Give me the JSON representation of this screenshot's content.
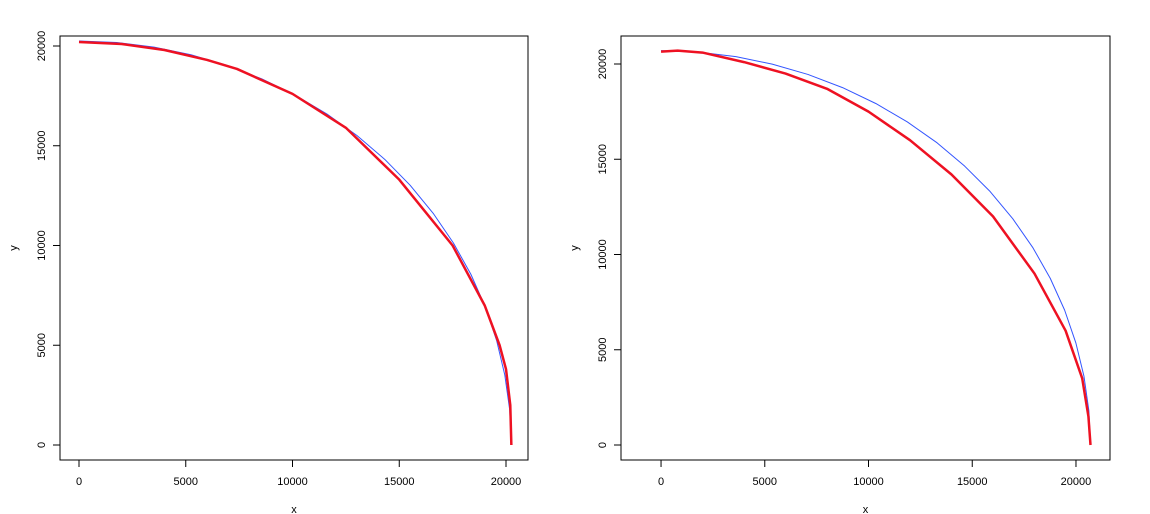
{
  "chart_data": [
    {
      "type": "line",
      "xlabel": "x",
      "ylabel": "y",
      "xlim": [
        -890,
        21030
      ],
      "ylim": [
        -752,
        20501
      ],
      "xticks": [
        0,
        5000,
        10000,
        15000,
        20000
      ],
      "yticks": [
        0,
        5000,
        10000,
        15000,
        20000
      ],
      "series": [
        {
          "color": "#3355ff",
          "width": 1,
          "x": [
            0,
            1765,
            3516,
            5241,
            6926,
            8558,
            10125,
            11615,
            13017,
            14319,
            15512,
            16588,
            17537,
            18353,
            19029,
            19560,
            19942,
            20173,
            20250
          ],
          "values": [
            20250,
            20173,
            19942,
            19560,
            19029,
            18353,
            17537,
            16588,
            15512,
            14319,
            13017,
            11615,
            10125,
            8558,
            6926,
            5241,
            3516,
            1765,
            0
          ]
        },
        {
          "color": "#ee1122",
          "width": 2.5,
          "x": [
            0,
            2000,
            4000,
            6000,
            7400,
            10000,
            12500,
            15000,
            17500,
            19000,
            19700,
            20000,
            20200,
            20250
          ],
          "values": [
            20200,
            20100,
            19800,
            19300,
            18850,
            17600,
            15900,
            13300,
            10000,
            7000,
            5000,
            3800,
            2000,
            0
          ]
        }
      ]
    },
    {
      "type": "line",
      "xlabel": "x",
      "ylabel": "y",
      "xlim": [
        -1930,
        21640
      ],
      "ylim": [
        -787,
        21470
      ],
      "xticks": [
        0,
        5000,
        10000,
        15000,
        20000
      ],
      "yticks": [
        0,
        5000,
        10000,
        15000,
        20000
      ],
      "series": [
        {
          "color": "#3355ff",
          "width": 1,
          "x": [
            0,
            1804,
            3608,
            5358,
            7080,
            8748,
            10350,
            11873,
            13306,
            14637,
            15862,
            16957,
            17927,
            18761,
            19453,
            19995,
            20385,
            20621,
            20700
          ],
          "values": [
            20700,
            20621,
            20385,
            19995,
            19453,
            18761,
            17927,
            16957,
            15862,
            14637,
            13306,
            11873,
            10350,
            8748,
            7080,
            5358,
            3608,
            1804,
            0
          ]
        },
        {
          "color": "#ee1122",
          "width": 2.5,
          "x": [
            0,
            800,
            2000,
            4000,
            6000,
            8000,
            10000,
            12000,
            14000,
            16000,
            18000,
            19500,
            20300,
            20600,
            20700
          ],
          "values": [
            20650,
            20700,
            20600,
            20100,
            19500,
            18700,
            17500,
            16000,
            14200,
            12000,
            9000,
            6000,
            3500,
            1500,
            0
          ]
        }
      ]
    }
  ]
}
